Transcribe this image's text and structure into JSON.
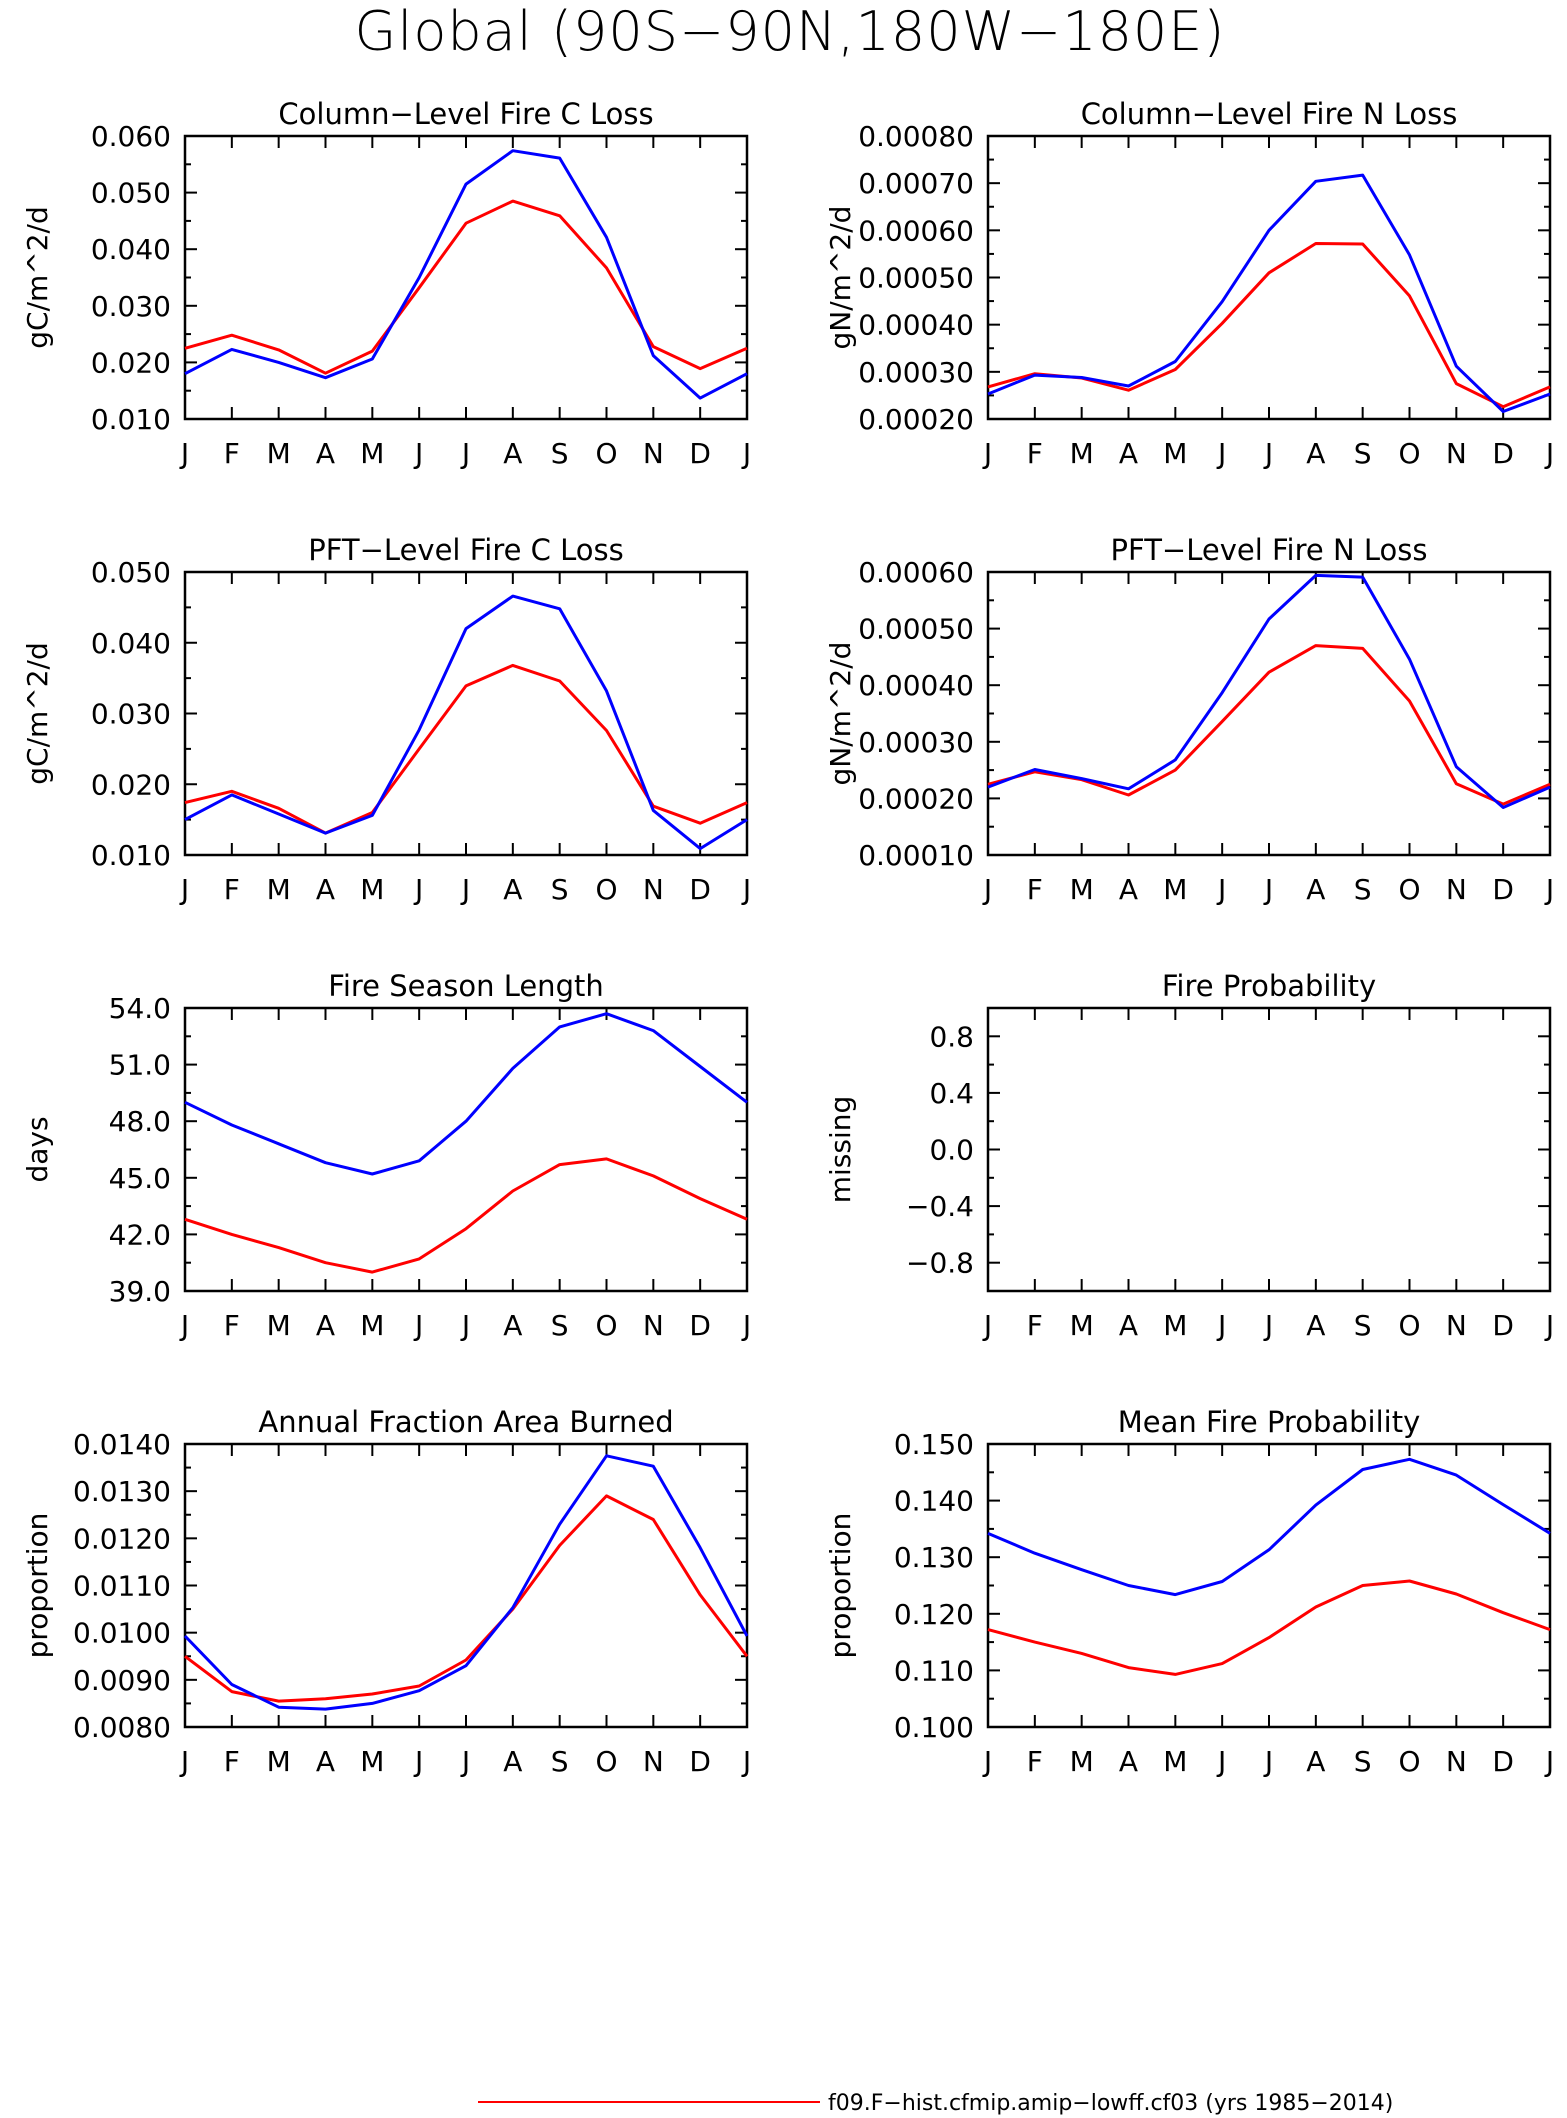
{
  "figure": {
    "title": "Global (90S−90N,180W−180E)",
    "colors": {
      "series_red": "#ff0000",
      "series_blue": "#0000ff",
      "axes": "#000000"
    },
    "legend": [
      {
        "color": "#ff0000",
        "label": "f09.F−hist.cfmip.amip−lowff.cf03 (yrs 1985−2014)"
      }
    ]
  },
  "chart_data": [
    {
      "type": "line",
      "title": "Column−Level Fire C Loss",
      "ylabel": "gC/m^2/d",
      "categories": [
        "J",
        "F",
        "M",
        "A",
        "M",
        "J",
        "J",
        "A",
        "S",
        "O",
        "N",
        "D",
        "J"
      ],
      "ylim": [
        0.01,
        0.06
      ],
      "yticks": [
        "0.010",
        "0.020",
        "0.030",
        "0.040",
        "0.050",
        "0.060"
      ],
      "yticks_values": [
        0.01,
        0.02,
        0.03,
        0.04,
        0.05,
        0.06
      ],
      "series": [
        {
          "color": "#ff0000",
          "values": [
            0.0225,
            0.0248,
            0.0222,
            0.0181,
            0.022,
            0.0332,
            0.0446,
            0.0485,
            0.0459,
            0.0367,
            0.0228,
            0.0189,
            0.0225
          ]
        },
        {
          "color": "#0000ff",
          "values": [
            0.018,
            0.0223,
            0.02,
            0.0173,
            0.0206,
            0.035,
            0.0515,
            0.0574,
            0.0561,
            0.0421,
            0.0212,
            0.0137,
            0.018
          ]
        }
      ]
    },
    {
      "type": "line",
      "title": "Column−Level Fire N Loss",
      "ylabel": "gN/m^2/d",
      "categories": [
        "J",
        "F",
        "M",
        "A",
        "M",
        "J",
        "J",
        "A",
        "S",
        "O",
        "N",
        "D",
        "J"
      ],
      "ylim": [
        0.0002,
        0.0008
      ],
      "yticks": [
        "0.00020",
        "0.00030",
        "0.00040",
        "0.00050",
        "0.00060",
        "0.00070",
        "0.00080"
      ],
      "yticks_values": [
        0.0002,
        0.0003,
        0.0004,
        0.0005,
        0.0006,
        0.0007,
        0.0008
      ],
      "series": [
        {
          "color": "#ff0000",
          "values": [
            0.000268,
            0.000296,
            0.000287,
            0.000261,
            0.000305,
            0.000403,
            0.00051,
            0.000572,
            0.000571,
            0.000461,
            0.000275,
            0.000226,
            0.000268
          ]
        },
        {
          "color": "#0000ff",
          "values": [
            0.000253,
            0.000293,
            0.000288,
            0.00027,
            0.000322,
            0.000449,
            0.0006,
            0.000704,
            0.000717,
            0.000548,
            0.000312,
            0.000216,
            0.000253
          ]
        }
      ]
    },
    {
      "type": "line",
      "title": "PFT−Level Fire C Loss",
      "ylabel": "gC/m^2/d",
      "categories": [
        "J",
        "F",
        "M",
        "A",
        "M",
        "J",
        "J",
        "A",
        "S",
        "O",
        "N",
        "D",
        "J"
      ],
      "ylim": [
        0.01,
        0.05
      ],
      "yticks": [
        "0.010",
        "0.020",
        "0.030",
        "0.040",
        "0.050"
      ],
      "yticks_values": [
        0.01,
        0.02,
        0.03,
        0.04,
        0.05
      ],
      "series": [
        {
          "color": "#ff0000",
          "values": [
            0.0174,
            0.019,
            0.0166,
            0.0131,
            0.016,
            0.025,
            0.0339,
            0.0368,
            0.0346,
            0.0276,
            0.0169,
            0.0145,
            0.0174
          ]
        },
        {
          "color": "#0000ff",
          "values": [
            0.015,
            0.0185,
            0.0158,
            0.0131,
            0.0156,
            0.0277,
            0.042,
            0.0466,
            0.0448,
            0.0332,
            0.0163,
            0.0109,
            0.015
          ]
        }
      ]
    },
    {
      "type": "line",
      "title": "PFT−Level Fire N Loss",
      "ylabel": "gN/m^2/d",
      "categories": [
        "J",
        "F",
        "M",
        "A",
        "M",
        "J",
        "J",
        "A",
        "S",
        "O",
        "N",
        "D",
        "J"
      ],
      "ylim": [
        0.0001,
        0.0006
      ],
      "yticks": [
        "0.00010",
        "0.00020",
        "0.00030",
        "0.00040",
        "0.00050",
        "0.00060"
      ],
      "yticks_values": [
        0.0001,
        0.0002,
        0.0003,
        0.0004,
        0.0005,
        0.0006
      ],
      "series": [
        {
          "color": "#ff0000",
          "values": [
            0.000225,
            0.000247,
            0.000233,
            0.000206,
            0.00025,
            0.000336,
            0.000423,
            0.00047,
            0.000465,
            0.000372,
            0.000226,
            0.00019,
            0.000225
          ]
        },
        {
          "color": "#0000ff",
          "values": [
            0.00022,
            0.000251,
            0.000235,
            0.000217,
            0.000268,
            0.000387,
            0.000517,
            0.000594,
            0.000591,
            0.000446,
            0.000256,
            0.000184,
            0.00022
          ]
        }
      ]
    },
    {
      "type": "line",
      "title": "Fire Season Length",
      "ylabel": "days",
      "categories": [
        "J",
        "F",
        "M",
        "A",
        "M",
        "J",
        "J",
        "A",
        "S",
        "O",
        "N",
        "D",
        "J"
      ],
      "ylim": [
        39.0,
        54.0
      ],
      "yticks": [
        "39.0",
        "42.0",
        "45.0",
        "48.0",
        "51.0",
        "54.0"
      ],
      "yticks_values": [
        39.0,
        42.0,
        45.0,
        48.0,
        51.0,
        54.0
      ],
      "series": [
        {
          "color": "#ff0000",
          "values": [
            42.8,
            42.0,
            41.3,
            40.5,
            40.0,
            40.7,
            42.3,
            44.3,
            45.7,
            46.0,
            45.1,
            43.9,
            42.8
          ]
        },
        {
          "color": "#0000ff",
          "values": [
            49.0,
            47.8,
            46.8,
            45.8,
            45.2,
            45.9,
            48.0,
            50.8,
            53.0,
            53.7,
            52.8,
            50.9,
            49.0
          ]
        }
      ]
    },
    {
      "type": "line",
      "title": "Fire Probability",
      "ylabel": "missing",
      "categories": [
        "J",
        "F",
        "M",
        "A",
        "M",
        "J",
        "J",
        "A",
        "S",
        "O",
        "N",
        "D",
        "J"
      ],
      "ylim": [
        -1.0,
        1.0
      ],
      "yticks": [
        "−0.8",
        "−0.4",
        "0.0",
        "0.4",
        "0.8"
      ],
      "yticks_values": [
        -0.8,
        -0.4,
        0.0,
        0.4,
        0.8
      ],
      "series": []
    },
    {
      "type": "line",
      "title": "Annual Fraction Area Burned",
      "ylabel": "proportion",
      "categories": [
        "J",
        "F",
        "M",
        "A",
        "M",
        "J",
        "J",
        "A",
        "S",
        "O",
        "N",
        "D",
        "J"
      ],
      "ylim": [
        0.008,
        0.014
      ],
      "yticks": [
        "0.0080",
        "0.0090",
        "0.0100",
        "0.0110",
        "0.0120",
        "0.0130",
        "0.0140"
      ],
      "yticks_values": [
        0.008,
        0.009,
        0.01,
        0.011,
        0.012,
        0.013,
        0.014
      ],
      "series": [
        {
          "color": "#ff0000",
          "values": [
            0.0095,
            0.00875,
            0.00855,
            0.0086,
            0.0087,
            0.00887,
            0.00942,
            0.0105,
            0.01185,
            0.0129,
            0.0124,
            0.0108,
            0.0095
          ]
        },
        {
          "color": "#0000ff",
          "values": [
            0.00993,
            0.0089,
            0.00842,
            0.00838,
            0.0085,
            0.00877,
            0.0093,
            0.01053,
            0.0123,
            0.01375,
            0.01353,
            0.0118,
            0.00993
          ]
        }
      ]
    },
    {
      "type": "line",
      "title": "Mean Fire Probability",
      "ylabel": "proportion",
      "categories": [
        "J",
        "F",
        "M",
        "A",
        "M",
        "J",
        "J",
        "A",
        "S",
        "O",
        "N",
        "D",
        "J"
      ],
      "ylim": [
        0.1,
        0.15
      ],
      "yticks": [
        "0.100",
        "0.110",
        "0.120",
        "0.130",
        "0.140",
        "0.150"
      ],
      "yticks_values": [
        0.1,
        0.11,
        0.12,
        0.13,
        0.14,
        0.15
      ],
      "series": [
        {
          "color": "#ff0000",
          "values": [
            0.1172,
            0.115,
            0.113,
            0.1105,
            0.1093,
            0.1112,
            0.1158,
            0.1212,
            0.125,
            0.1258,
            0.1235,
            0.1202,
            0.1172
          ]
        },
        {
          "color": "#0000ff",
          "values": [
            0.1342,
            0.1307,
            0.1278,
            0.125,
            0.1234,
            0.1257,
            0.1313,
            0.1392,
            0.1455,
            0.1473,
            0.1445,
            0.1393,
            0.1342
          ]
        }
      ]
    }
  ]
}
